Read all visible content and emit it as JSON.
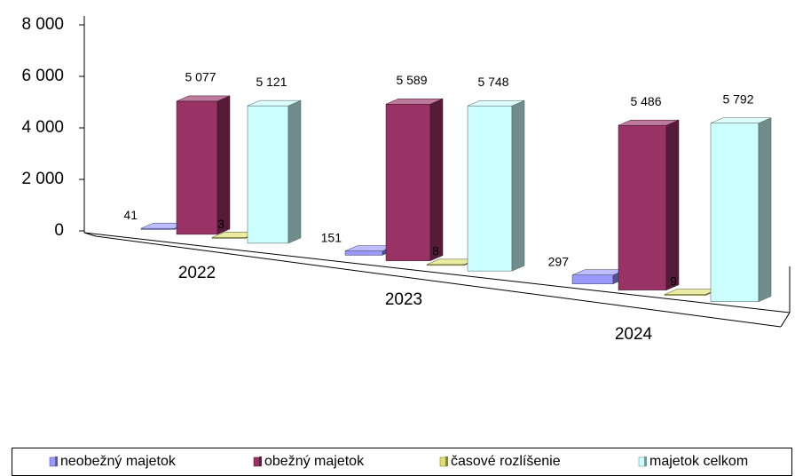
{
  "chart_data": {
    "type": "bar",
    "categories": [
      "2022",
      "2023",
      "2024"
    ],
    "series": [
      {
        "name": "neobežný majetok",
        "color": "#9999ff",
        "values": [
          41,
          151,
          297
        ]
      },
      {
        "name": "obežný majetok",
        "color": "#993366",
        "values": [
          5077,
          5589,
          5486
        ],
        "value_labels": [
          "5 077",
          "5 589",
          "5 486"
        ]
      },
      {
        "name": "časové rozlíšenie",
        "color": "#e0e070",
        "values": [
          3,
          8,
          9
        ]
      },
      {
        "name": "majetok celkom",
        "color": "#ccffff",
        "values": [
          5121,
          5748,
          5792
        ],
        "value_labels": [
          "5 121",
          "5 748",
          "5 792"
        ]
      }
    ],
    "ylim": [
      0,
      8000
    ],
    "yticks": [
      0,
      {
        "value": 2000,
        "label": "2 000"
      },
      {
        "value": 4000,
        "label": "4 000"
      },
      {
        "value": 6000,
        "label": "6 000"
      },
      {
        "value": 8000,
        "label": "8 000"
      }
    ],
    "legend": "bottom"
  }
}
